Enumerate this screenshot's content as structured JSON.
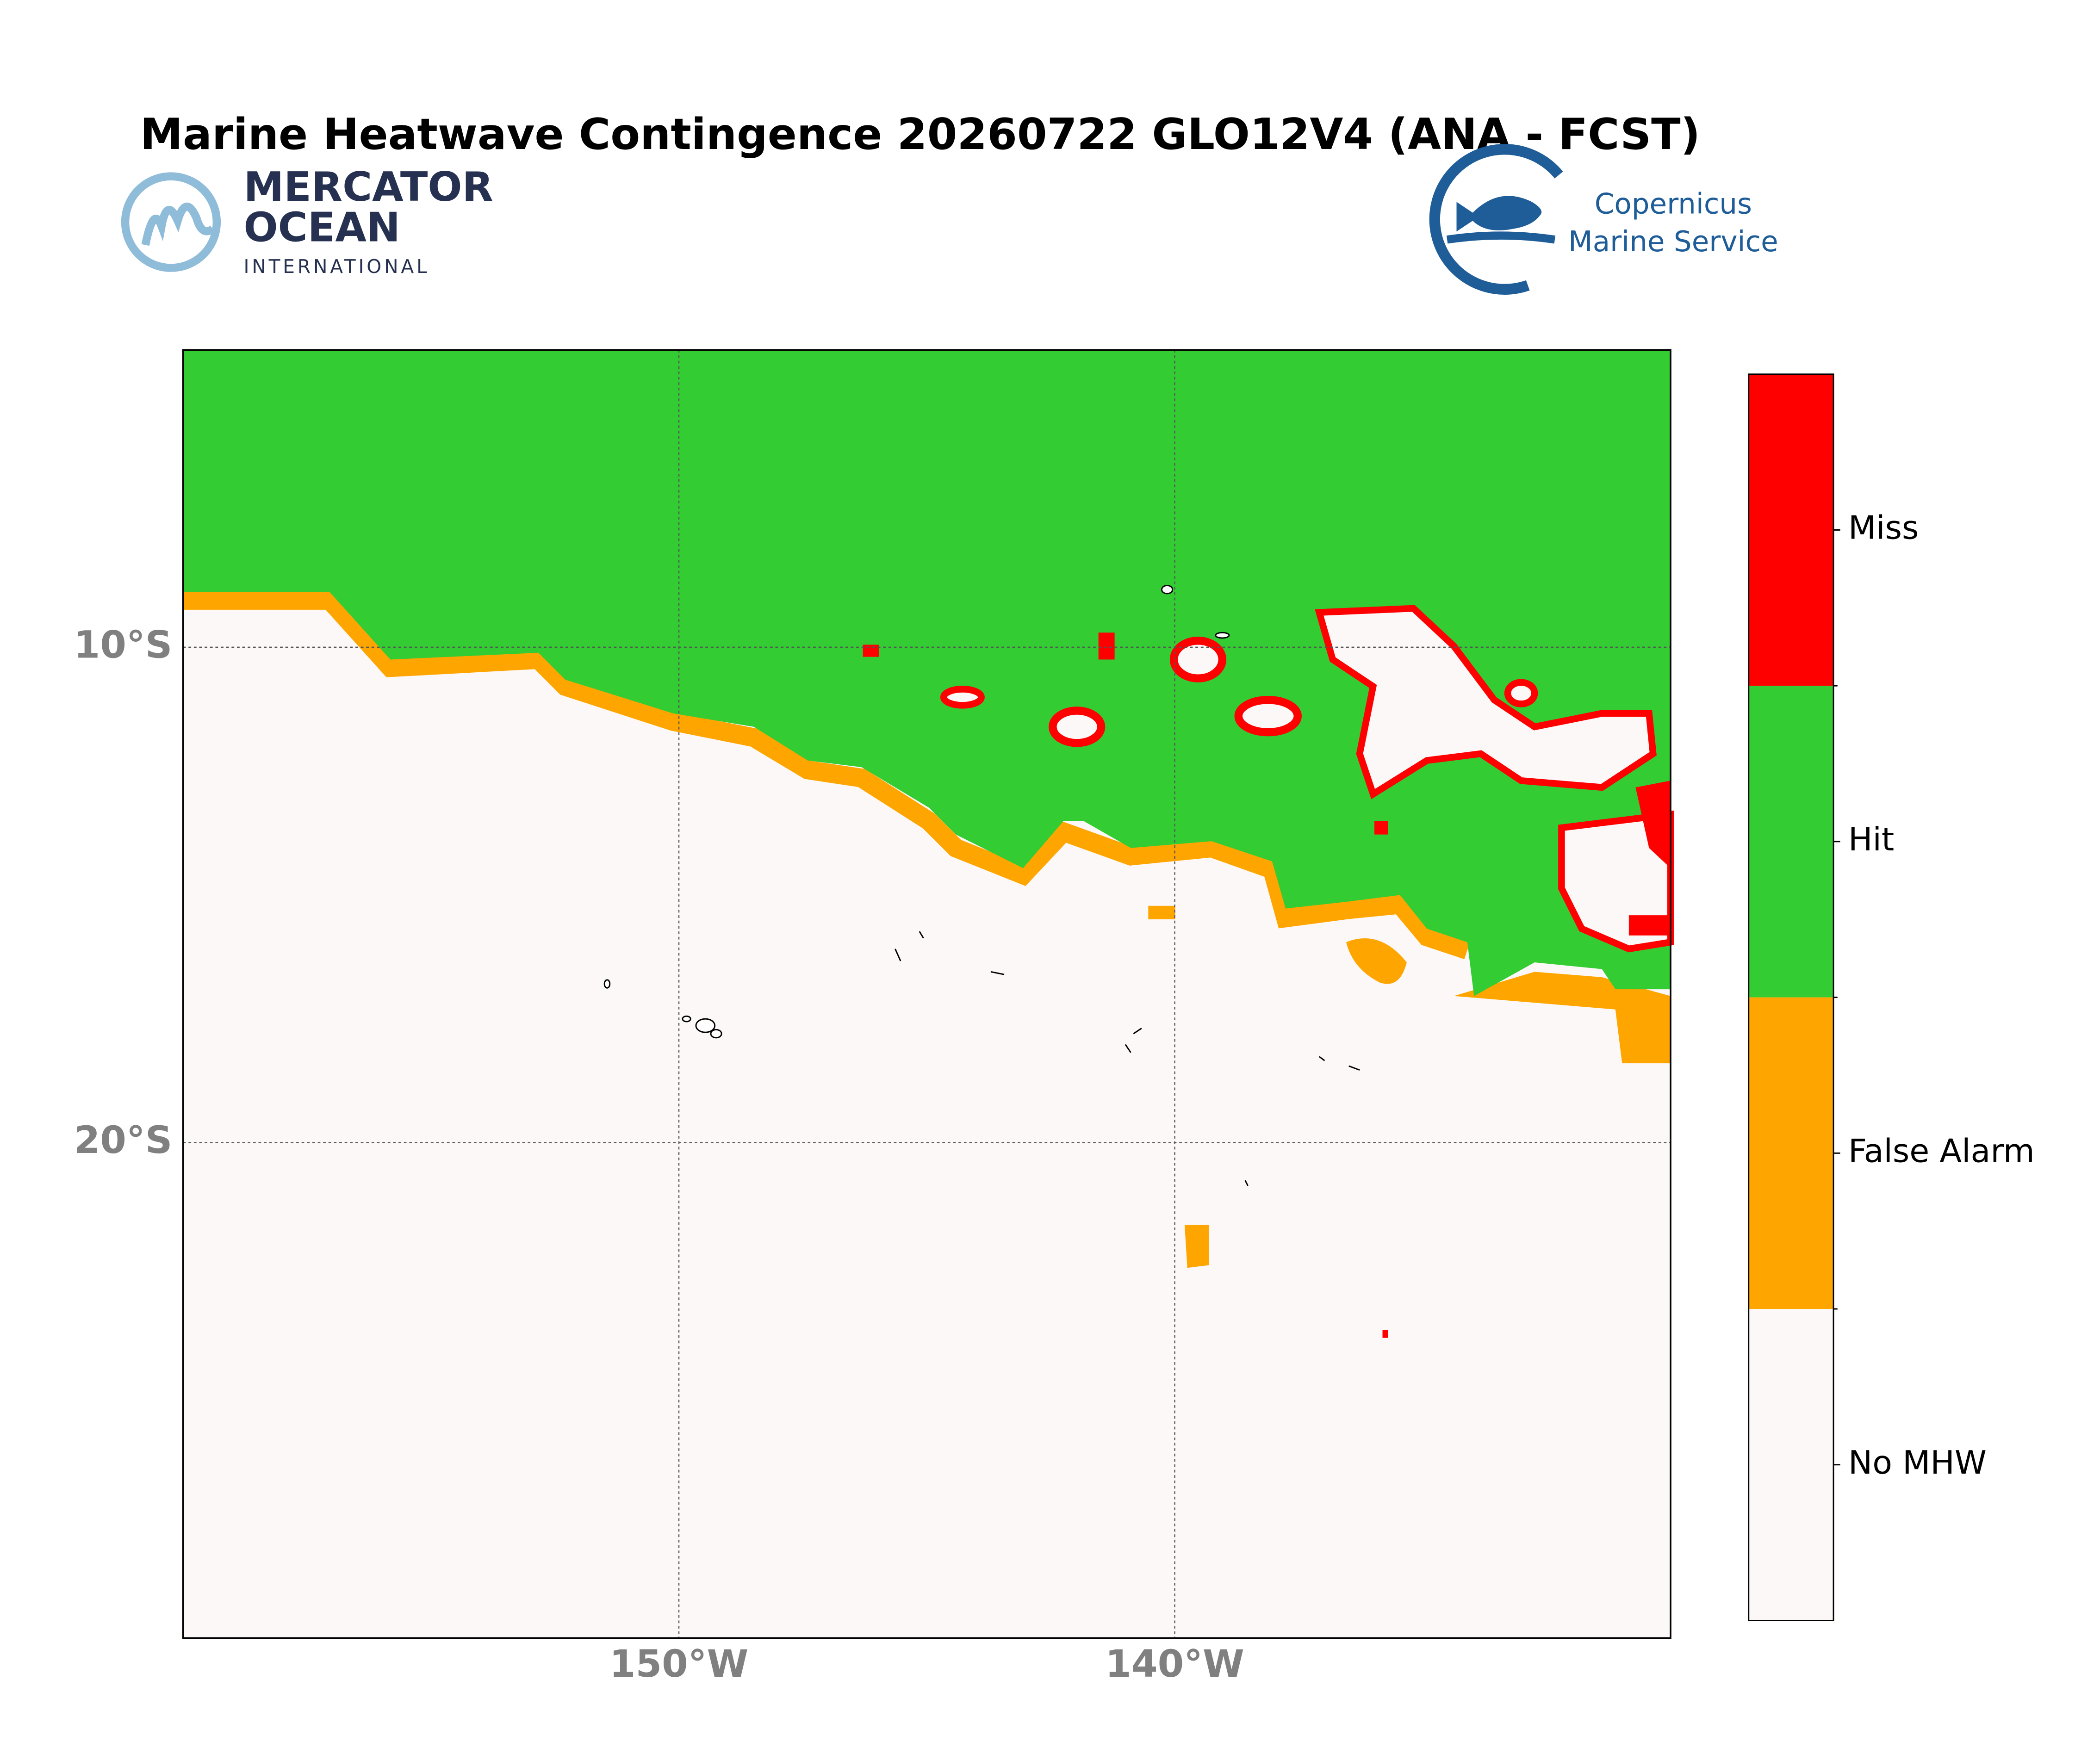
{
  "header": {
    "title": "Marine Heatwave Contingence 20260722 GLO12V4 (ANA - FCST)"
  },
  "logos": {
    "left": [
      "MERCATOR",
      "OCEAN",
      "INTERNATIONAL"
    ],
    "right": [
      "Copernicus",
      "Marine Service"
    ]
  },
  "map": {
    "xlim": [
      -160,
      -130
    ],
    "ylim": [
      -30,
      -4
    ],
    "xticks": [
      {
        "value": -150,
        "label": "150°W"
      },
      {
        "value": -140,
        "label": "140°W"
      }
    ],
    "yticks": [
      {
        "value": -10,
        "label": "10°S"
      },
      {
        "value": -20,
        "label": "20°S"
      }
    ],
    "legend": [
      {
        "name": "Miss",
        "color": "#ff0000"
      },
      {
        "name": "Hit",
        "color": "#33cc33"
      },
      {
        "name": "False Alarm",
        "color": "#ffa500"
      },
      {
        "name": "No MHW",
        "color": "#fcf8f8"
      }
    ]
  }
}
